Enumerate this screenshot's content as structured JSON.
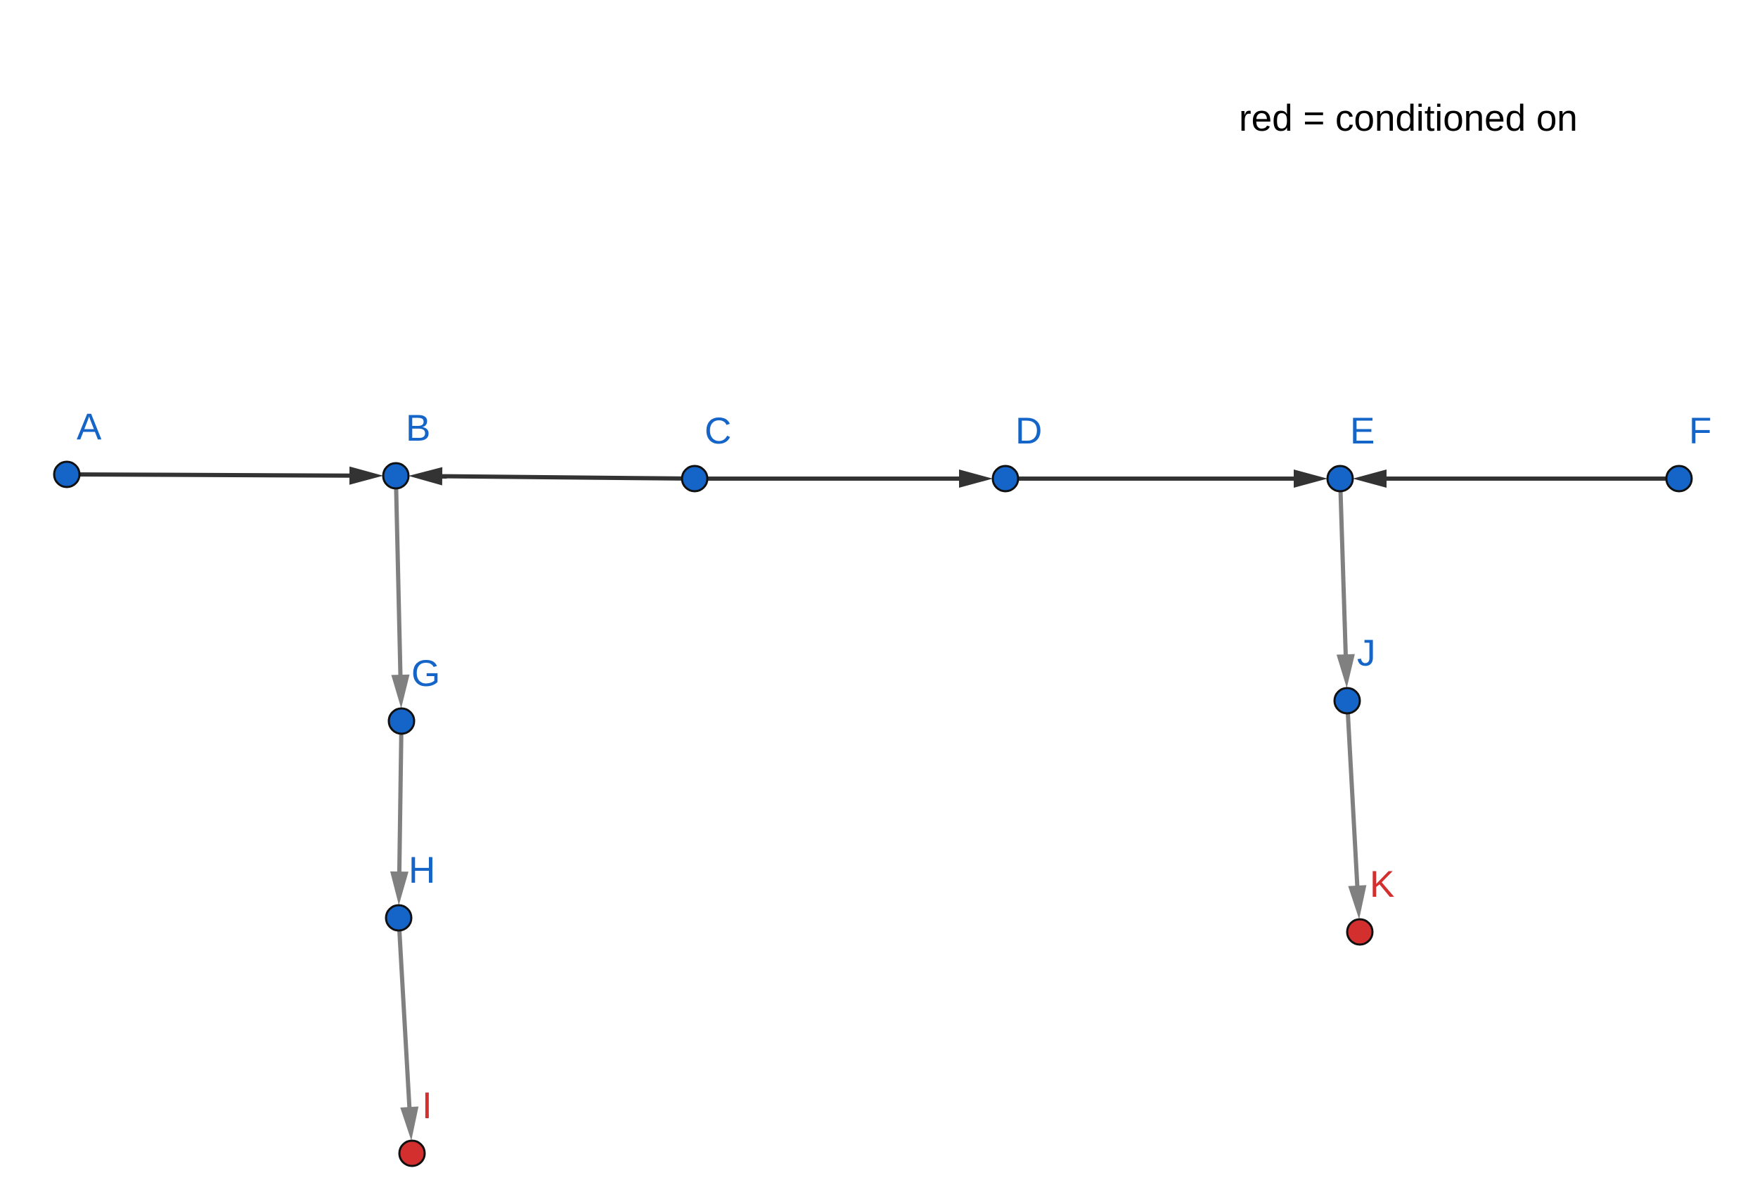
{
  "legend": {
    "text": "red = conditioned on"
  },
  "colors": {
    "node_default": "#1565c8",
    "node_conditioned": "#d32f2f",
    "node_outline": "#111111",
    "edge_main": "#333333",
    "edge_secondary": "#808080",
    "legend_text": "#000000"
  },
  "nodes": [
    {
      "id": "A",
      "label": "A",
      "conditioned": false
    },
    {
      "id": "B",
      "label": "B",
      "conditioned": false
    },
    {
      "id": "C",
      "label": "C",
      "conditioned": false
    },
    {
      "id": "D",
      "label": "D",
      "conditioned": false
    },
    {
      "id": "E",
      "label": "E",
      "conditioned": false
    },
    {
      "id": "F",
      "label": "F",
      "conditioned": false
    },
    {
      "id": "G",
      "label": "G",
      "conditioned": false
    },
    {
      "id": "H",
      "label": "H",
      "conditioned": false
    },
    {
      "id": "I",
      "label": "I",
      "conditioned": true
    },
    {
      "id": "J",
      "label": "J",
      "conditioned": false
    },
    {
      "id": "K",
      "label": "K",
      "conditioned": true
    }
  ],
  "edges": [
    {
      "from": "A",
      "to": "B",
      "style": "main"
    },
    {
      "from": "C",
      "to": "B",
      "style": "main"
    },
    {
      "from": "C",
      "to": "D",
      "style": "main"
    },
    {
      "from": "D",
      "to": "E",
      "style": "main"
    },
    {
      "from": "F",
      "to": "E",
      "style": "main"
    },
    {
      "from": "B",
      "to": "G",
      "style": "secondary"
    },
    {
      "from": "G",
      "to": "H",
      "style": "secondary"
    },
    {
      "from": "H",
      "to": "I",
      "style": "secondary"
    },
    {
      "from": "E",
      "to": "J",
      "style": "secondary"
    },
    {
      "from": "J",
      "to": "K",
      "style": "secondary"
    }
  ]
}
